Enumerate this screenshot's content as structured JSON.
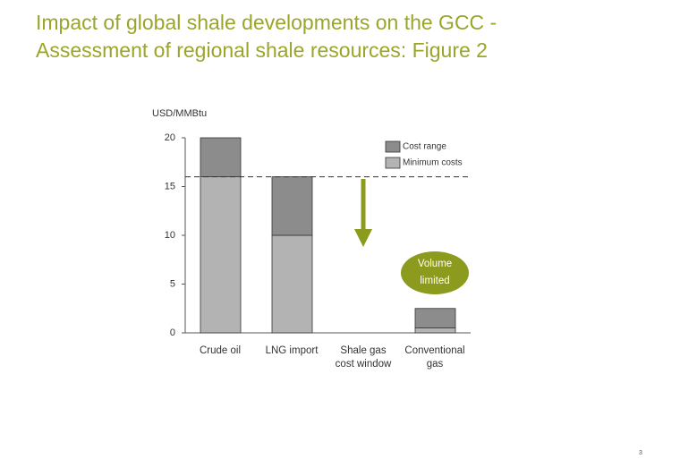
{
  "chart_data": {
    "type": "stacked_bar",
    "title": "Impact of global shale developments on the GCC -\nAssessment of regional shale resources: Figure 2",
    "y_label": "USD/MMBtu",
    "categories": [
      "Crude oil",
      "LNG import",
      "Shale gas\ncost window",
      "Conventional\ngas"
    ],
    "series": [
      {
        "name": "Minimum costs",
        "color": "#b3b3b3",
        "values": [
          16,
          10,
          null,
          0.5
        ]
      },
      {
        "name": "Cost range",
        "color": "#8c8c8c",
        "values": [
          4,
          6,
          null,
          2
        ]
      }
    ],
    "ylim": [
      0,
      20
    ],
    "yticks": [
      0,
      5,
      10,
      15,
      20
    ],
    "reference_line": 16,
    "annotation": "Volume\nlimited",
    "page_number": "3"
  }
}
